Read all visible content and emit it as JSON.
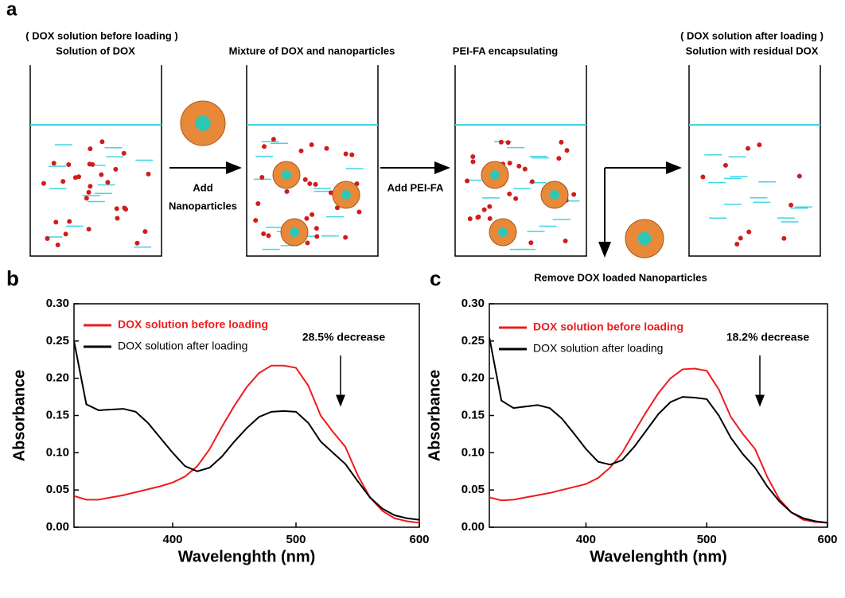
{
  "diagram": {
    "panel_label": "a",
    "beakers": [
      {
        "note": "( DOX solution before loading )",
        "title": "Solution of DOX"
      },
      {
        "title": "Mixture of DOX and nanoparticles"
      },
      {
        "title": "PEI-FA encapsulating"
      },
      {
        "note": "( DOX solution after loading )",
        "title": "Solution with residual DOX"
      }
    ],
    "steps": [
      {
        "line1": "Add",
        "line2": "Nanoparticles"
      },
      {
        "line1": "Add PEI-FA"
      }
    ],
    "removal": "Remove DOX loaded Nanoparticles"
  },
  "chart_data": [
    {
      "type": "line",
      "panel_label": "b",
      "annotation": "28.5% decrease",
      "x_label": "Wavelenghth (nm)",
      "y_label": "Absorbance",
      "xlim": [
        320,
        600
      ],
      "xticks": [
        400,
        500,
        600
      ],
      "ylim": [
        0,
        0.3
      ],
      "yticks": [
        {
          "value": 0,
          "label": "0.00"
        },
        {
          "value": 0.05,
          "label": "0.05"
        },
        {
          "value": 0.1,
          "label": "0.10"
        },
        {
          "value": 0.15,
          "label": "0.15"
        },
        {
          "value": 0.2,
          "label": "0.20"
        },
        {
          "value": 0.25,
          "label": "0.25"
        },
        {
          "value": 0.3,
          "label": "0.30"
        }
      ],
      "x": [
        320,
        330,
        340,
        350,
        360,
        370,
        380,
        390,
        400,
        410,
        420,
        430,
        440,
        450,
        460,
        470,
        480,
        490,
        500,
        510,
        520,
        530,
        540,
        550,
        560,
        570,
        580,
        590,
        600
      ],
      "series": [
        {
          "name": "DOX solution before loading",
          "color": "#ee1c1c",
          "values": [
            0.042,
            0.037,
            0.037,
            0.04,
            0.043,
            0.047,
            0.051,
            0.055,
            0.06,
            0.068,
            0.082,
            0.105,
            0.135,
            0.163,
            0.188,
            0.207,
            0.217,
            0.217,
            0.214,
            0.19,
            0.15,
            0.128,
            0.108,
            0.07,
            0.04,
            0.022,
            0.012,
            0.008,
            0.006
          ]
        },
        {
          "name": "DOX solution after loading",
          "color": "#000000",
          "values": [
            0.25,
            0.165,
            0.157,
            0.158,
            0.159,
            0.155,
            0.14,
            0.12,
            0.1,
            0.082,
            0.075,
            0.08,
            0.095,
            0.115,
            0.133,
            0.148,
            0.155,
            0.156,
            0.155,
            0.14,
            0.115,
            0.1,
            0.085,
            0.062,
            0.04,
            0.025,
            0.016,
            0.012,
            0.01
          ]
        }
      ]
    },
    {
      "type": "line",
      "panel_label": "c",
      "annotation": "18.2% decrease",
      "x_label": "Wavelenghth (nm)",
      "y_label": "Absorbance",
      "xlim": [
        320,
        600
      ],
      "xticks": [
        400,
        500,
        600
      ],
      "ylim": [
        0,
        0.3
      ],
      "yticks": [
        {
          "value": 0,
          "label": "0.00"
        },
        {
          "value": 0.05,
          "label": "0.05"
        },
        {
          "value": 0.1,
          "label": "0.10"
        },
        {
          "value": 0.15,
          "label": "0.15"
        },
        {
          "value": 0.2,
          "label": "0.20"
        },
        {
          "value": 0.25,
          "label": "0.25"
        },
        {
          "value": 0.3,
          "label": "0.30"
        }
      ],
      "x": [
        320,
        330,
        340,
        350,
        360,
        370,
        380,
        390,
        400,
        410,
        420,
        430,
        440,
        450,
        460,
        470,
        480,
        490,
        500,
        510,
        520,
        530,
        540,
        550,
        560,
        570,
        580,
        590,
        600
      ],
      "series": [
        {
          "name": "DOX solution before loading",
          "color": "#ee1c1c",
          "values": [
            0.04,
            0.036,
            0.037,
            0.04,
            0.043,
            0.046,
            0.05,
            0.054,
            0.058,
            0.066,
            0.08,
            0.1,
            0.128,
            0.155,
            0.18,
            0.2,
            0.212,
            0.213,
            0.21,
            0.185,
            0.148,
            0.125,
            0.105,
            0.068,
            0.038,
            0.02,
            0.01,
            0.007,
            0.006
          ]
        },
        {
          "name": "DOX solution after loading",
          "color": "#000000",
          "values": [
            0.255,
            0.17,
            0.16,
            0.162,
            0.164,
            0.16,
            0.146,
            0.126,
            0.105,
            0.088,
            0.084,
            0.09,
            0.108,
            0.13,
            0.152,
            0.168,
            0.175,
            0.174,
            0.172,
            0.15,
            0.12,
            0.098,
            0.08,
            0.055,
            0.035,
            0.02,
            0.012,
            0.008,
            0.006
          ]
        }
      ]
    }
  ]
}
